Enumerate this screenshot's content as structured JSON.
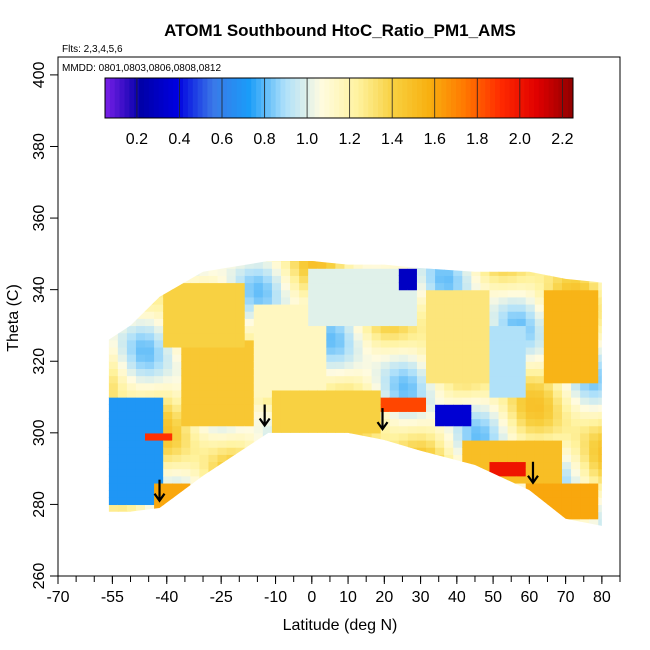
{
  "chart_data": {
    "type": "heatmap",
    "title": "ATOM1 Southbound HtoC_Ratio_PM1_AMS",
    "flights_text": "Flts: 2,3,4,5,6",
    "dates_text": "MMDD: 0801,0803,0806,0808,0812",
    "xlabel": "Latitude (deg N)",
    "ylabel": "Theta (C)",
    "xlim": [
      -70,
      85
    ],
    "ylim": [
      260,
      405
    ],
    "x_ticks": [
      -70,
      -55,
      -40,
      -25,
      -10,
      0,
      10,
      20,
      30,
      40,
      50,
      60,
      70,
      80
    ],
    "x_tick_labels": [
      "-70",
      "-55",
      "-40",
      "-25",
      "-10",
      "0",
      "10",
      "20",
      "30",
      "40",
      "50",
      "60",
      "70",
      "80"
    ],
    "y_ticks": [
      260,
      280,
      300,
      320,
      340,
      360,
      380,
      400
    ],
    "y_tick_labels": [
      "260",
      "280",
      "300",
      "320",
      "340",
      "360",
      "380",
      "400"
    ],
    "colorbar": {
      "min": 0.05,
      "max": 2.25,
      "ticks": [
        0.2,
        0.4,
        0.6,
        0.8,
        1.0,
        1.2,
        1.4,
        1.6,
        1.8,
        2.0,
        2.2
      ],
      "tick_labels": [
        "0.2",
        "0.4",
        "0.6",
        "0.8",
        "1.0",
        "1.2",
        "1.4",
        "1.6",
        "1.8",
        "2.0",
        "2.2"
      ],
      "colors": [
        "#7a1fe8",
        "#0000a8",
        "#0000e0",
        "#3a78e8",
        "#1a9cf8",
        "#aee0fa",
        "#fffbe0",
        "#fff3a0",
        "#f8d040",
        "#f8b010",
        "#ff7800",
        "#ff2a00",
        "#e00000",
        "#900000"
      ]
    },
    "profile_edges": [
      {
        "lat": -56,
        "top": 326,
        "bottom": 278
      },
      {
        "lat": -50,
        "top": 330,
        "bottom": 278
      },
      {
        "lat": -42,
        "top": 338,
        "bottom": 279
      },
      {
        "lat": -30,
        "top": 345,
        "bottom": 288
      },
      {
        "lat": -12,
        "top": 348,
        "bottom": 300
      },
      {
        "lat": 0,
        "top": 348,
        "bottom": 300
      },
      {
        "lat": 10,
        "top": 347,
        "bottom": 300
      },
      {
        "lat": 20,
        "top": 347,
        "bottom": 298
      },
      {
        "lat": 30,
        "top": 346,
        "bottom": 295
      },
      {
        "lat": 45,
        "top": 345,
        "bottom": 291
      },
      {
        "lat": 60,
        "top": 345,
        "bottom": 284
      },
      {
        "lat": 70,
        "top": 343,
        "bottom": 276
      },
      {
        "lat": 80,
        "top": 342,
        "bottom": 274
      }
    ],
    "regions": [
      {
        "lat": [
          -58,
          -42
        ],
        "theta": [
          280,
          310
        ],
        "value": 0.7
      },
      {
        "lat": [
          -44,
          -34
        ],
        "theta": [
          279,
          285
        ],
        "value": 1.6
      },
      {
        "lat": [
          -46,
          -38
        ],
        "theta": [
          298,
          300
        ],
        "value": 1.9
      },
      {
        "lat": [
          -36,
          -15
        ],
        "theta": [
          302,
          325
        ],
        "value": 1.45
      },
      {
        "lat": [
          -40,
          -18
        ],
        "theta": [
          325,
          342
        ],
        "value": 1.4
      },
      {
        "lat": [
          -15,
          5
        ],
        "theta": [
          310,
          335
        ],
        "value": 1.15
      },
      {
        "lat": [
          -10,
          20
        ],
        "theta": [
          300,
          312
        ],
        "value": 1.4
      },
      {
        "lat": [
          0,
          30
        ],
        "theta": [
          330,
          346
        ],
        "value": 1.0
      },
      {
        "lat": [
          20,
          32
        ],
        "theta": [
          306,
          310
        ],
        "value": 1.85
      },
      {
        "lat": [
          35,
          45
        ],
        "theta": [
          303,
          307
        ],
        "value": 0.35
      },
      {
        "lat": [
          42,
          70
        ],
        "theta": [
          287,
          297
        ],
        "value": 1.5
      },
      {
        "lat": [
          50,
          60
        ],
        "theta": [
          289,
          292
        ],
        "value": 2.0
      },
      {
        "lat": [
          60,
          78
        ],
        "theta": [
          276,
          285
        ],
        "value": 1.6
      },
      {
        "lat": [
          32,
          48
        ],
        "theta": [
          315,
          340
        ],
        "value": 1.3
      },
      {
        "lat": [
          65,
          78
        ],
        "theta": [
          315,
          340
        ],
        "value": 1.55
      },
      {
        "lat": [
          24,
          28
        ],
        "theta": [
          340,
          346
        ],
        "value": 0.3
      },
      {
        "lat": [
          50,
          60
        ],
        "theta": [
          310,
          330
        ],
        "value": 0.9
      }
    ],
    "arrows": [
      {
        "lat": -42,
        "theta": 283
      },
      {
        "lat": -13,
        "theta": 304
      },
      {
        "lat": 19.5,
        "theta": 303
      },
      {
        "lat": 61,
        "theta": 288
      }
    ]
  }
}
